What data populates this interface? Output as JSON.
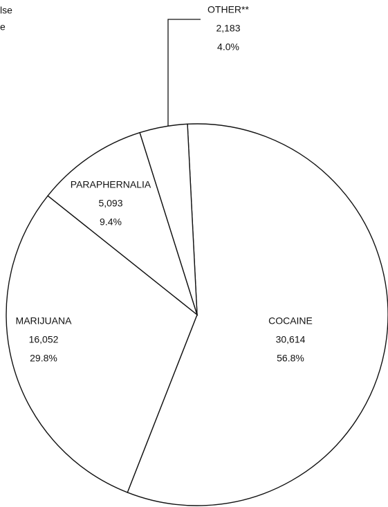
{
  "chart_data": {
    "type": "pie",
    "title_lines": [
      "lse",
      "e"
    ],
    "categories": [
      "COCAINE",
      "MARIJUANA",
      "PARAPHERNALIA",
      "OTHER**"
    ],
    "values": [
      30614,
      16052,
      5093,
      2183
    ],
    "value_labels": [
      "30,614",
      "16,052",
      "5,093",
      "2,183"
    ],
    "percents": [
      56.8,
      29.8,
      9.4,
      4.0
    ],
    "percent_labels": [
      "56.8%",
      "29.8%",
      "9.4%",
      "4.0%"
    ],
    "color": "#ffffff",
    "stroke": "#111111"
  }
}
